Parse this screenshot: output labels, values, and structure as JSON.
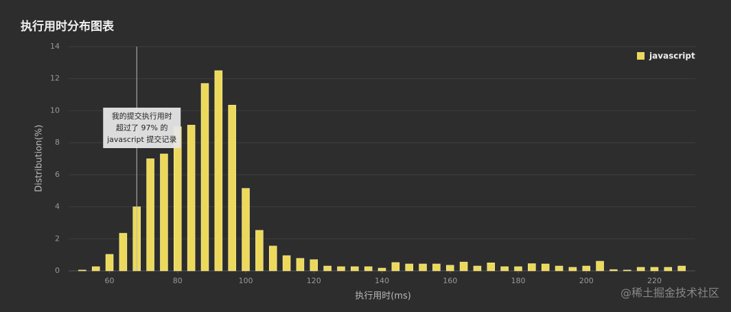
{
  "chart_data": {
    "type": "bar",
    "title": "执行用时分布图表",
    "x_label": "执行用时(ms)",
    "y_label": "Distribution(%)",
    "x": [
      52,
      56,
      60,
      64,
      68,
      72,
      76,
      80,
      84,
      88,
      92,
      96,
      100,
      104,
      108,
      112,
      116,
      120,
      124,
      128,
      132,
      136,
      140,
      144,
      148,
      152,
      156,
      160,
      164,
      168,
      172,
      176,
      180,
      184,
      188,
      192,
      196,
      200,
      204,
      208,
      212,
      216,
      220,
      224,
      228
    ],
    "series": [
      {
        "name": "javascript",
        "color": "#ecd95b",
        "values": [
          0.05,
          0.26,
          1.03,
          2.35,
          4.0,
          7.0,
          7.3,
          9.0,
          9.1,
          11.7,
          12.5,
          10.35,
          5.15,
          2.53,
          1.55,
          0.95,
          0.78,
          0.7,
          0.3,
          0.26,
          0.26,
          0.26,
          0.17,
          0.52,
          0.43,
          0.43,
          0.43,
          0.35,
          0.55,
          0.3,
          0.5,
          0.26,
          0.26,
          0.45,
          0.43,
          0.3,
          0.22,
          0.3,
          0.6,
          0.08,
          0.05,
          0.22,
          0.22,
          0.22,
          0.3
        ]
      }
    ],
    "xlim": [
      48,
      232
    ],
    "ylim": [
      0,
      14
    ],
    "xticks": [
      60,
      80,
      100,
      120,
      140,
      160,
      180,
      200,
      220
    ],
    "yticks": [
      0,
      2,
      4,
      6,
      8,
      10,
      12,
      14
    ],
    "grid": true,
    "legend": "top-right",
    "marker_x": 68,
    "annotation": [
      "我的提交执行用时",
      "超过了 97% 的",
      "javascript 提交记录"
    ],
    "watermark": "@稀土掘金技术社区"
  }
}
